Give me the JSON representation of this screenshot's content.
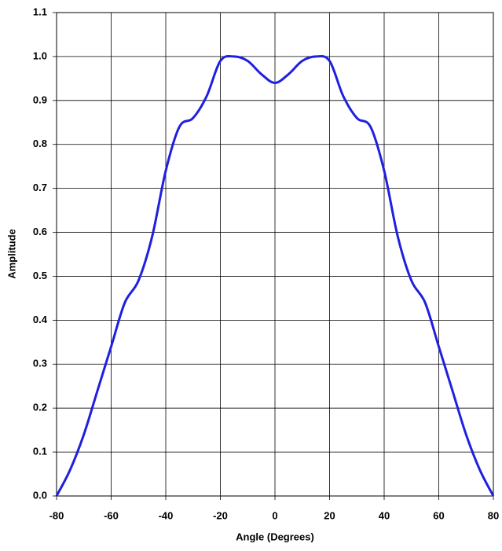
{
  "chart_data": {
    "type": "line",
    "xlabel": "Angle (Degrees)",
    "ylabel": "Amplitude",
    "x": [
      -80,
      -75,
      -70,
      -65,
      -60,
      -55,
      -50,
      -45,
      -40,
      -35,
      -30,
      -25,
      -20,
      -15,
      -10,
      -5,
      0,
      5,
      10,
      15,
      20,
      25,
      30,
      35,
      40,
      45,
      50,
      55,
      60,
      65,
      70,
      75,
      80
    ],
    "series": [
      {
        "color": "#1f1fe0",
        "values": [
          0,
          0.06,
          0.14,
          0.24,
          0.34,
          0.44,
          0.49,
          0.59,
          0.74,
          0.84,
          0.86,
          0.91,
          0.99,
          1.0,
          0.99,
          0.96,
          0.94,
          0.96,
          0.99,
          1.0,
          0.99,
          0.91,
          0.86,
          0.84,
          0.74,
          0.59,
          0.49,
          0.44,
          0.34,
          0.24,
          0.14,
          0.06,
          0
        ]
      }
    ],
    "xlim": [
      -80,
      80
    ],
    "xticks": [
      -80,
      -60,
      -40,
      -20,
      0,
      20,
      40,
      60,
      80
    ],
    "ylim": [
      0,
      1.1
    ],
    "yticks": [
      {
        "value": 0,
        "label": "0.0"
      },
      0.1,
      0.2,
      0.3,
      0.4,
      0.5,
      0.6,
      0.7,
      0.8,
      0.9,
      {
        "value": 1,
        "label": "1.0"
      },
      1.1
    ],
    "grid": true
  }
}
